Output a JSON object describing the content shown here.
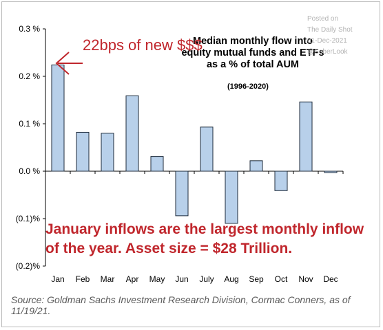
{
  "chart_data": {
    "type": "bar",
    "title": "Median monthly flow into equity mutual funds and ETFs as a % of total AUM",
    "title_lines": [
      "Median monthly flow into",
      "equity mutual funds and ETFs",
      "as a % of total AUM"
    ],
    "subtitle": "(1996-2020)",
    "categories": [
      "Jan",
      "Feb",
      "Mar",
      "Apr",
      "May",
      "Jun",
      "July",
      "Aug",
      "Sep",
      "Oct",
      "Nov",
      "Dec"
    ],
    "values": [
      0.224,
      0.082,
      0.08,
      0.159,
      0.031,
      -0.094,
      0.093,
      -0.11,
      0.022,
      -0.041,
      0.146,
      -0.003
    ],
    "ylim": [
      -0.2,
      0.3
    ],
    "yticks": [
      0.3,
      0.2,
      0.1,
      0.0,
      -0.1,
      -0.2
    ],
    "ytick_labels": [
      "0.3 %",
      "0.2 %",
      "0.1 %",
      "0.0 %",
      "(0.1)%",
      "(0.2)%"
    ],
    "grid": false,
    "legend": "none",
    "bar_color": "#b8d0ea",
    "bar_edge_color": "#1c2a3a",
    "annotations": {
      "callout": "22bps of new $$$",
      "note": "January inflows are the largest monthly inflow of the year. Asset size = $28 Trillion."
    }
  },
  "source": "Source: Goldman Sachs Investment Research Division, Cormac Conners, as of 11/19/21.",
  "watermark": {
    "line1": "Posted on",
    "line2": "The Daily Shot",
    "line3": "01-Dec-2021",
    "line4": "@SoberLook"
  },
  "colors": {
    "accent_red": "#c0262c",
    "source_text": "#595959"
  }
}
